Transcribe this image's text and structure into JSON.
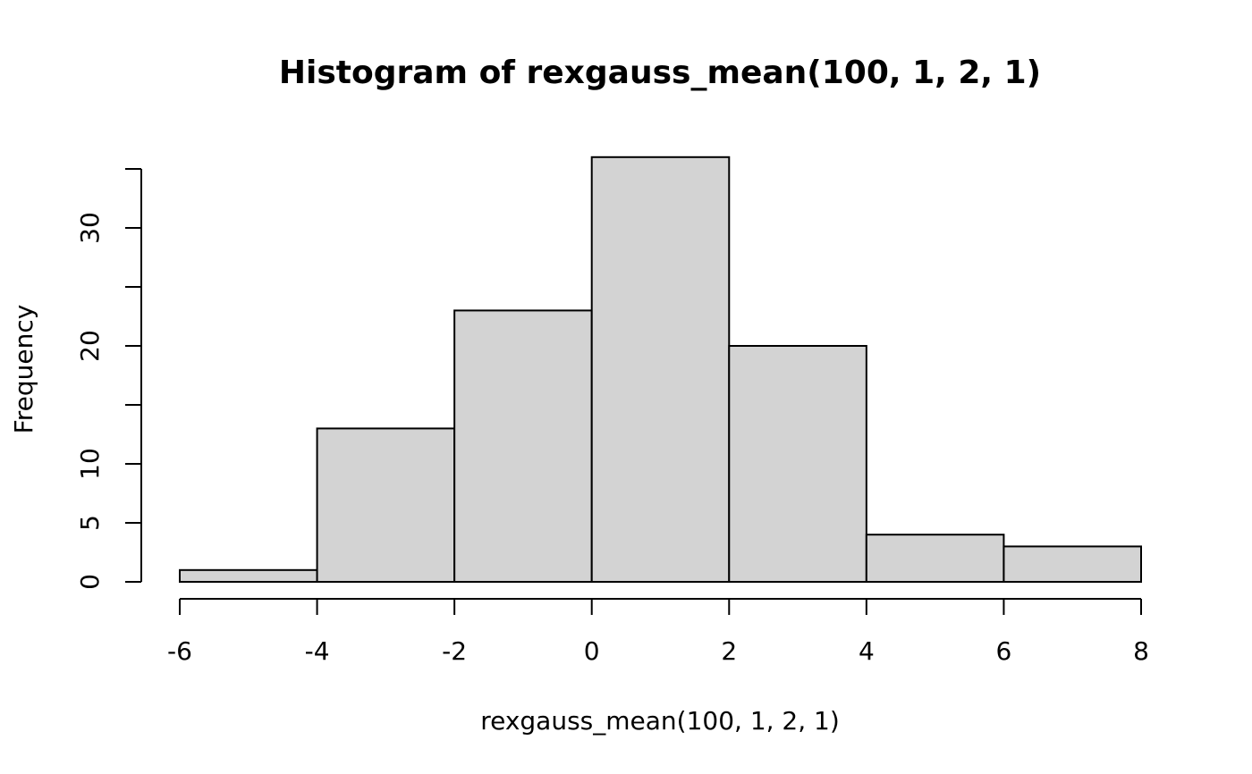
{
  "chart_data": {
    "type": "bar",
    "title": "Histogram of rexgauss_mean(100, 1, 2, 1)",
    "xlabel": "rexgauss_mean(100, 1, 2, 1)",
    "ylabel": "Frequency",
    "bins": [
      {
        "start": -6,
        "end": -4,
        "count": 1
      },
      {
        "start": -4,
        "end": -2,
        "count": 13
      },
      {
        "start": -2,
        "end": 0,
        "count": 23
      },
      {
        "start": 0,
        "end": 2,
        "count": 36
      },
      {
        "start": 2,
        "end": 4,
        "count": 20
      },
      {
        "start": 4,
        "end": 6,
        "count": 4
      },
      {
        "start": 6,
        "end": 8,
        "count": 3
      }
    ],
    "x_ticks": [
      "-6",
      "-4",
      "-2",
      "0",
      "2",
      "4",
      "6",
      "8"
    ],
    "x_tick_values": [
      -6,
      -4,
      -2,
      0,
      2,
      4,
      6,
      8
    ],
    "y_ticks_labeled": [
      {
        "value": 0,
        "label": "0"
      },
      {
        "value": 5,
        "label": "5"
      },
      {
        "value": 10,
        "label": "10"
      },
      {
        "value": 20,
        "label": "20"
      },
      {
        "value": 30,
        "label": "30"
      }
    ],
    "y_ticks_unlabeled": [
      15,
      25,
      35
    ],
    "xlim": [
      -6,
      8
    ],
    "ylim": [
      0,
      35
    ],
    "grid": false,
    "bar_fill": "#d3d3d3",
    "bar_stroke": "#000000"
  }
}
